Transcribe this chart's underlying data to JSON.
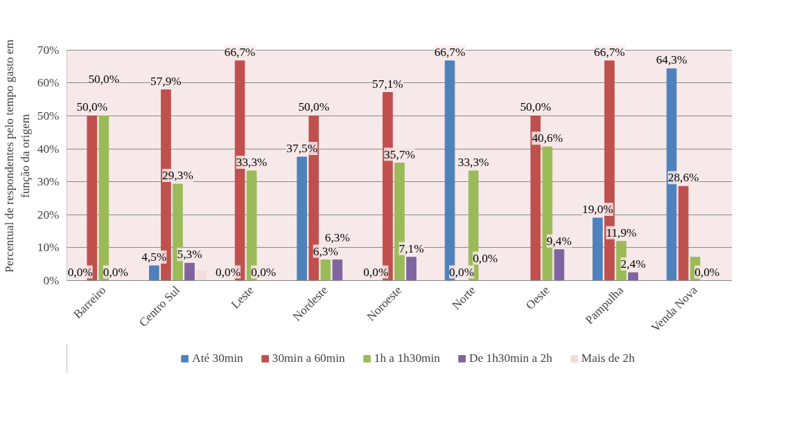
{
  "chart_data": {
    "type": "bar",
    "ylabel": "Percentual de respondentes pelo tempo gasto em\nfunção da origem",
    "categories": [
      "Barreiro",
      "Centro Sul",
      "Leste",
      "Nordeste",
      "Noroeste",
      "Norte",
      "Oeste",
      "Pampulha",
      "Venda Nova"
    ],
    "series": [
      {
        "name": "Até 30min",
        "color": "#4f81bd",
        "values": [
          0,
          4.5,
          0,
          37.5,
          0,
          66.7,
          0,
          19.0,
          64.3
        ],
        "value_labels": [
          "0,0%",
          "4,5%",
          "0,0%",
          "37,5%",
          "0,0%",
          "66,7%",
          null,
          "19,0%",
          "64,3%"
        ]
      },
      {
        "name": "30min a 60min",
        "color": "#c0504d",
        "values": [
          50.0,
          57.9,
          66.7,
          50.0,
          57.1,
          0,
          50.0,
          66.7,
          28.6
        ],
        "value_labels": [
          "50,0%",
          "57,9%",
          "66,7%",
          "50,0%",
          "57,1%",
          "0,0%",
          "50,0%",
          "66,7%",
          "28,6%"
        ]
      },
      {
        "name": "1h a 1h30min",
        "color": "#9bbb59",
        "values": [
          50.0,
          29.3,
          33.3,
          6.3,
          35.7,
          33.3,
          40.6,
          11.9,
          7.1
        ],
        "value_labels": [
          "50,0%",
          "29,3%",
          "33,3%",
          "6,3%",
          "35,7%",
          "33,3%",
          "40,6%",
          "11,9%",
          null
        ]
      },
      {
        "name": "De 1h30min a 2h",
        "color": "#8064a2",
        "values": [
          0,
          5.3,
          0,
          6.3,
          7.1,
          0,
          9.4,
          2.4,
          0
        ],
        "value_labels": [
          "0,0%",
          "5,3%",
          "0,0%",
          "6,3%",
          "7,1%",
          "0,0%",
          "9,4%",
          "2,4%",
          "0,0%"
        ]
      },
      {
        "name": "Mais de 2h",
        "color": "#f2dcdb",
        "values": [
          0,
          3.0,
          0,
          0,
          0,
          0,
          0,
          0,
          0
        ],
        "value_labels": [
          null,
          null,
          null,
          null,
          null,
          null,
          null,
          null,
          null
        ]
      }
    ],
    "ylim": [
      0,
      70
    ],
    "yticks": [
      {
        "value": 0,
        "label": "0%"
      },
      {
        "value": 10,
        "label": "10%"
      },
      {
        "value": 20,
        "label": "20%"
      },
      {
        "value": 30,
        "label": "30%"
      },
      {
        "value": 40,
        "label": "40%"
      },
      {
        "value": 50,
        "label": "50%"
      },
      {
        "value": 60,
        "label": "60%"
      },
      {
        "value": 70,
        "label": "70%"
      }
    ],
    "grid": "y",
    "legend": "bottom"
  }
}
